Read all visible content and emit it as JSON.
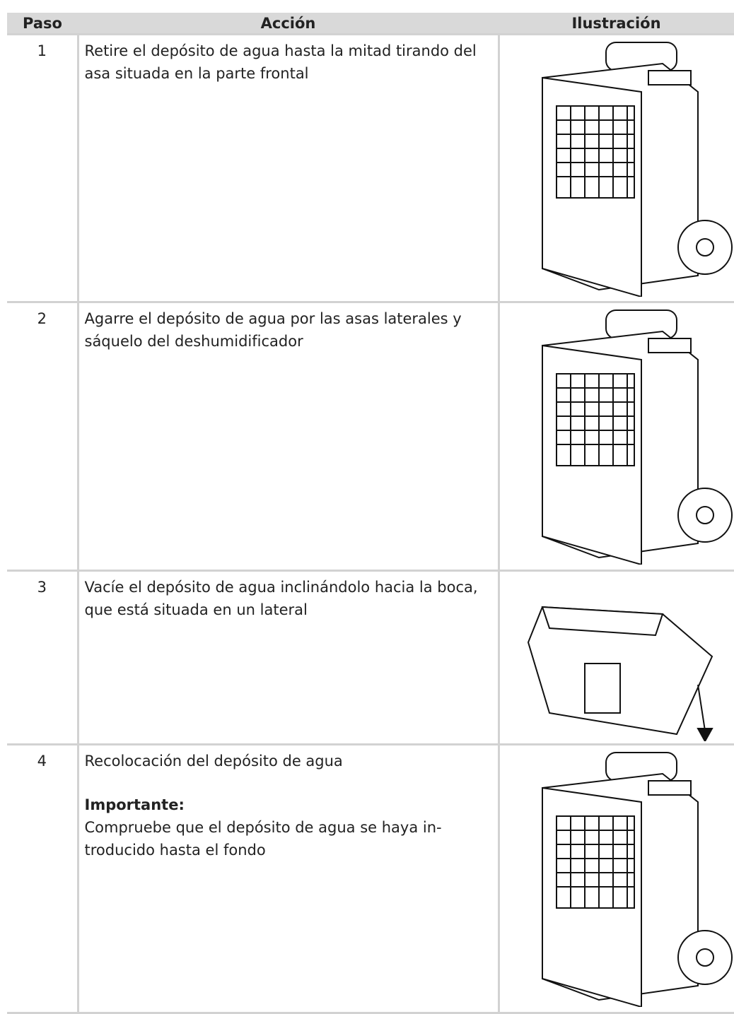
{
  "table": {
    "header": [
      "Paso",
      "Acción",
      "Ilustración"
    ],
    "rows": [
      {
        "step": "1",
        "action": "Retire el depósito de agua hasta la mitad tirando del asa situada en la parte frontal"
      },
      {
        "step": "2",
        "action": "Agarre el depósito de agua por las asas laterales y sáquelo del deshumidificador"
      },
      {
        "step": "3",
        "action": "Vacíe el depósito de agua inclinándolo hacia la boca, que está situada en un lateral"
      },
      {
        "step": "4",
        "action": "Recolocación del depósito de agua",
        "note_title": "Importante:",
        "note": "Compruebe que el depósito de agua se haya in-troducido hasta el fondo"
      }
    ]
  }
}
